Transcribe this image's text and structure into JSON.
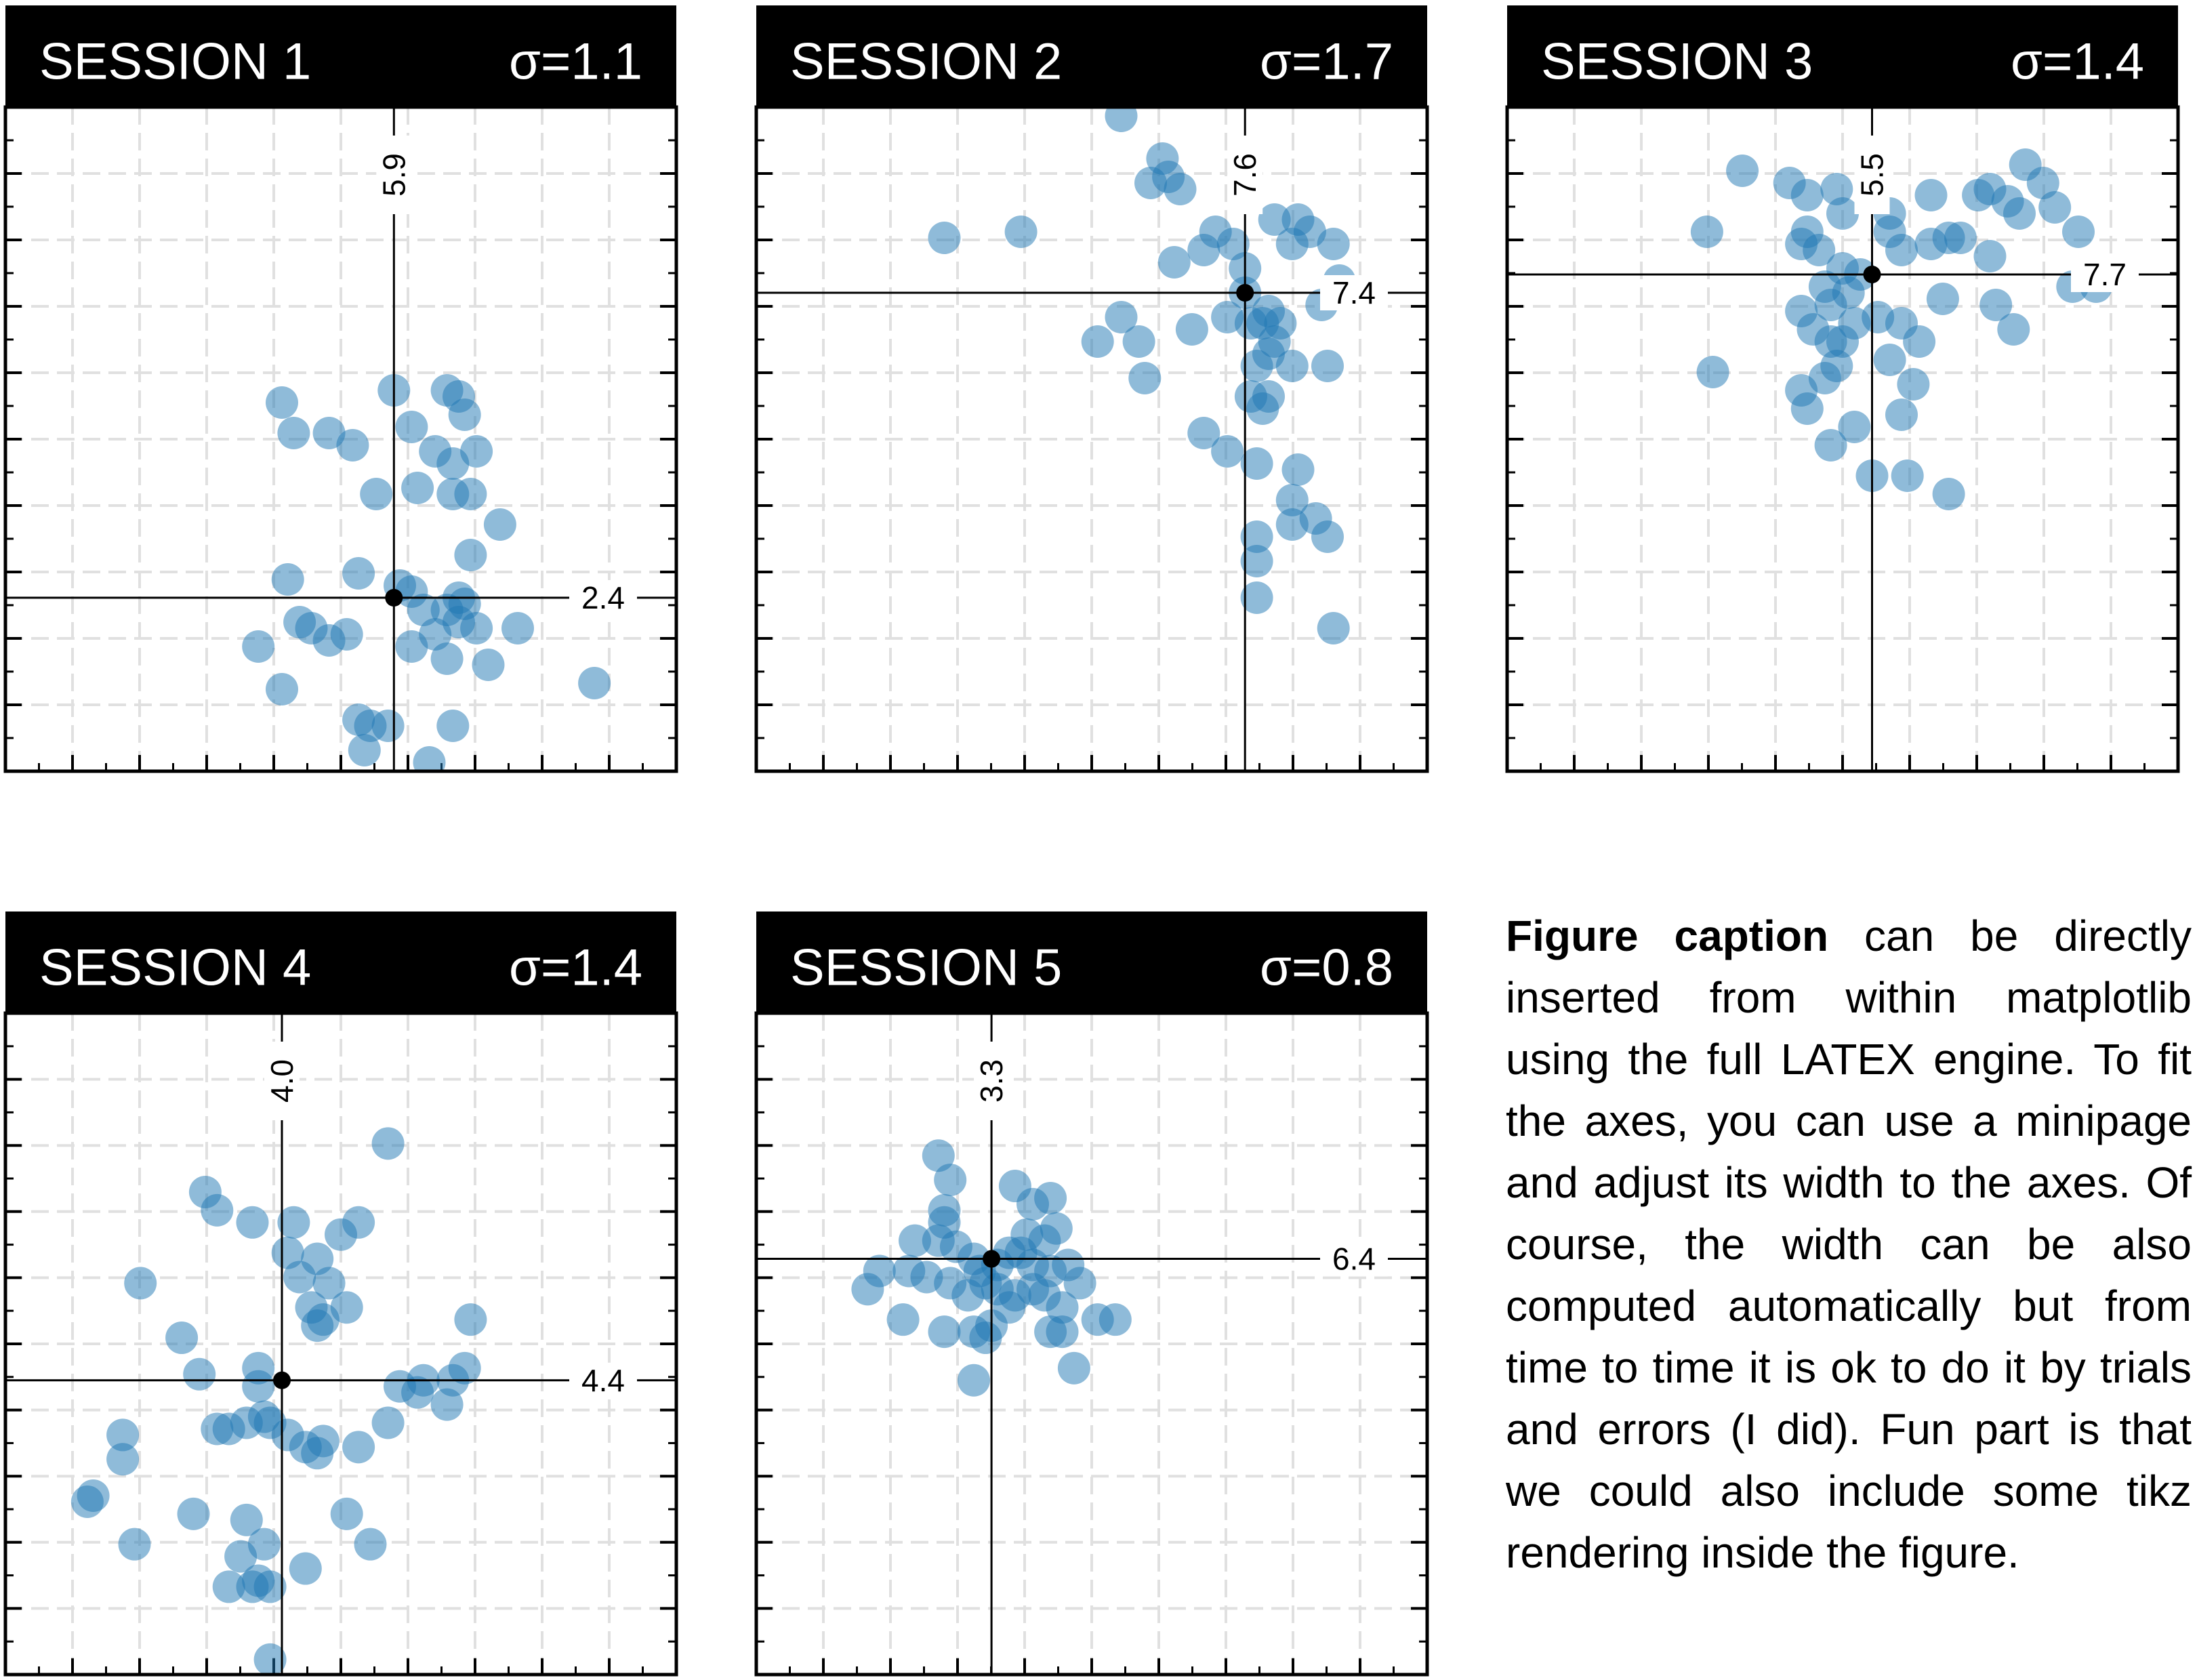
{
  "chart_data": [
    {
      "type": "scatter",
      "title": "SESSION 1",
      "sigma_label": "σ=1.1",
      "mean": {
        "x": 5.9,
        "y": 2.4
      },
      "mean_x_label": "5.9",
      "mean_y_label": "2.4",
      "xlim": [
        0,
        10
      ],
      "ylim": [
        0,
        10
      ],
      "grid": true,
      "points": [
        [
          4.2,
          5.1
        ],
        [
          4.8,
          5.1
        ],
        [
          4.0,
          5.6
        ],
        [
          5.6,
          4.1
        ],
        [
          5.9,
          5.8
        ],
        [
          5.2,
          4.9
        ],
        [
          6.2,
          5.2
        ],
        [
          6.8,
          5.8
        ],
        [
          7.0,
          5.7
        ],
        [
          7.1,
          5.4
        ],
        [
          6.6,
          4.8
        ],
        [
          6.9,
          4.6
        ],
        [
          7.3,
          4.8
        ],
        [
          6.3,
          4.2
        ],
        [
          6.9,
          4.1
        ],
        [
          7.2,
          4.1
        ],
        [
          7.2,
          3.1
        ],
        [
          7.7,
          3.6
        ],
        [
          7.1,
          2.3
        ],
        [
          7.0,
          2.4
        ],
        [
          6.0,
          2.6
        ],
        [
          5.3,
          2.8
        ],
        [
          6.2,
          2.5
        ],
        [
          6.4,
          2.2
        ],
        [
          6.8,
          2.2
        ],
        [
          7.0,
          2.0
        ],
        [
          6.6,
          1.8
        ],
        [
          7.3,
          1.9
        ],
        [
          7.5,
          1.3
        ],
        [
          6.8,
          1.4
        ],
        [
          6.2,
          1.6
        ],
        [
          8.0,
          1.9
        ],
        [
          9.3,
          1.0
        ],
        [
          3.6,
          1.6
        ],
        [
          4.1,
          2.7
        ],
        [
          4.5,
          1.9
        ],
        [
          4.3,
          2.0
        ],
        [
          4.8,
          1.7
        ],
        [
          5.1,
          1.8
        ],
        [
          4.0,
          0.9
        ],
        [
          5.3,
          0.4
        ],
        [
          5.5,
          0.3
        ],
        [
          5.8,
          0.3
        ],
        [
          6.9,
          0.3
        ],
        [
          5.4,
          -0.1
        ],
        [
          6.5,
          -0.3
        ]
      ]
    },
    {
      "type": "scatter",
      "title": "SESSION 2",
      "sigma_label": "σ=1.7",
      "mean": {
        "x": 7.6,
        "y": 7.4
      },
      "mean_x_label": "7.6",
      "mean_y_label": "7.4",
      "xlim": [
        0,
        10
      ],
      "ylim": [
        0,
        10
      ],
      "grid": true,
      "points": [
        [
          2.5,
          8.3
        ],
        [
          3.8,
          8.4
        ],
        [
          5.5,
          10.3
        ],
        [
          6.0,
          9.2
        ],
        [
          6.2,
          9.6
        ],
        [
          6.3,
          9.3
        ],
        [
          6.5,
          9.1
        ],
        [
          6.9,
          8.1
        ],
        [
          6.4,
          7.9
        ],
        [
          7.1,
          8.4
        ],
        [
          7.4,
          8.2
        ],
        [
          8.1,
          8.6
        ],
        [
          8.5,
          8.6
        ],
        [
          8.7,
          8.4
        ],
        [
          8.4,
          8.2
        ],
        [
          9.1,
          8.2
        ],
        [
          9.2,
          7.6
        ],
        [
          8.9,
          7.2
        ],
        [
          8.2,
          6.9
        ],
        [
          8.0,
          7.1
        ],
        [
          7.3,
          7.0
        ],
        [
          7.7,
          6.9
        ],
        [
          7.9,
          6.9
        ],
        [
          7.6,
          7.4
        ],
        [
          7.6,
          7.8
        ],
        [
          5.5,
          7.0
        ],
        [
          5.1,
          6.6
        ],
        [
          5.8,
          6.6
        ],
        [
          5.9,
          6.0
        ],
        [
          6.7,
          6.8
        ],
        [
          8.1,
          6.6
        ],
        [
          8.0,
          6.4
        ],
        [
          7.8,
          6.2
        ],
        [
          8.4,
          6.2
        ],
        [
          9.0,
          6.2
        ],
        [
          8.0,
          5.7
        ],
        [
          7.7,
          5.7
        ],
        [
          7.9,
          5.5
        ],
        [
          6.9,
          5.1
        ],
        [
          7.3,
          4.8
        ],
        [
          7.8,
          4.6
        ],
        [
          8.4,
          4.0
        ],
        [
          8.5,
          4.5
        ],
        [
          8.8,
          3.7
        ],
        [
          9.0,
          3.4
        ],
        [
          8.4,
          3.6
        ],
        [
          7.8,
          3.4
        ],
        [
          7.8,
          3.0
        ],
        [
          7.8,
          2.4
        ],
        [
          9.1,
          1.9
        ]
      ]
    },
    {
      "type": "scatter",
      "title": "SESSION 3",
      "sigma_label": "σ=1.4",
      "mean": {
        "x": 5.5,
        "y": 7.7
      },
      "mean_x_label": "5.5",
      "mean_y_label": "7.7",
      "xlim": [
        0,
        10
      ],
      "ylim": [
        0,
        10
      ],
      "grid": true,
      "points": [
        [
          3.3,
          9.4
        ],
        [
          4.1,
          9.2
        ],
        [
          4.3,
          8.2
        ],
        [
          4.4,
          9.0
        ],
        [
          4.6,
          8.1
        ],
        [
          4.9,
          9.1
        ],
        [
          5.0,
          8.7
        ],
        [
          5.5,
          9.0
        ],
        [
          5.8,
          8.7
        ],
        [
          6.5,
          9.0
        ],
        [
          6.8,
          8.3
        ],
        [
          7.3,
          9.0
        ],
        [
          7.5,
          9.1
        ],
        [
          7.8,
          8.9
        ],
        [
          8.0,
          8.7
        ],
        [
          8.4,
          9.2
        ],
        [
          8.6,
          8.8
        ],
        [
          8.1,
          9.5
        ],
        [
          9.0,
          8.4
        ],
        [
          7.5,
          8.0
        ],
        [
          7.0,
          8.3
        ],
        [
          6.5,
          8.2
        ],
        [
          6.0,
          8.1
        ],
        [
          5.8,
          8.4
        ],
        [
          4.4,
          8.4
        ],
        [
          2.7,
          8.4
        ],
        [
          4.7,
          7.5
        ],
        [
          5.0,
          7.8
        ],
        [
          5.3,
          7.7
        ],
        [
          5.1,
          7.4
        ],
        [
          4.8,
          7.2
        ],
        [
          4.3,
          7.1
        ],
        [
          4.5,
          6.8
        ],
        [
          4.8,
          6.6
        ],
        [
          5.0,
          6.6
        ],
        [
          5.2,
          6.9
        ],
        [
          5.6,
          7.0
        ],
        [
          6.0,
          6.9
        ],
        [
          6.3,
          6.6
        ],
        [
          5.8,
          6.3
        ],
        [
          4.9,
          6.2
        ],
        [
          4.7,
          6.0
        ],
        [
          4.3,
          5.8
        ],
        [
          5.2,
          5.2
        ],
        [
          6.2,
          5.9
        ],
        [
          6.0,
          5.4
        ],
        [
          6.7,
          7.3
        ],
        [
          7.6,
          7.2
        ],
        [
          7.9,
          6.8
        ],
        [
          8.9,
          7.5
        ],
        [
          9.3,
          7.5
        ],
        [
          2.8,
          6.1
        ],
        [
          4.4,
          5.5
        ],
        [
          4.8,
          4.9
        ],
        [
          5.5,
          4.4
        ],
        [
          6.1,
          4.4
        ],
        [
          6.8,
          4.1
        ]
      ]
    },
    {
      "type": "scatter",
      "title": "SESSION 4",
      "sigma_label": "σ=1.4",
      "mean": {
        "x": 4.0,
        "y": 4.4
      },
      "mean_x_label": "4.0",
      "mean_y_label": "4.4",
      "xlim": [
        0,
        10
      ],
      "ylim": [
        0,
        10
      ],
      "grid": true,
      "points": [
        [
          5.8,
          8.3
        ],
        [
          2.7,
          7.5
        ],
        [
          2.9,
          7.2
        ],
        [
          1.6,
          6.0
        ],
        [
          3.5,
          7.0
        ],
        [
          4.2,
          7.0
        ],
        [
          4.1,
          6.5
        ],
        [
          4.3,
          6.1
        ],
        [
          4.6,
          6.4
        ],
        [
          4.8,
          6.0
        ],
        [
          4.5,
          5.6
        ],
        [
          4.6,
          5.3
        ],
        [
          4.7,
          5.4
        ],
        [
          5.1,
          5.6
        ],
        [
          5.0,
          6.8
        ],
        [
          5.3,
          7.0
        ],
        [
          2.3,
          5.1
        ],
        [
          2.6,
          4.5
        ],
        [
          3.6,
          4.6
        ],
        [
          3.6,
          4.3
        ],
        [
          3.7,
          3.8
        ],
        [
          3.4,
          3.7
        ],
        [
          3.1,
          3.6
        ],
        [
          2.9,
          3.6
        ],
        [
          3.8,
          3.7
        ],
        [
          4.1,
          3.5
        ],
        [
          4.4,
          3.3
        ],
        [
          4.6,
          3.2
        ],
        [
          4.7,
          3.4
        ],
        [
          5.3,
          3.3
        ],
        [
          5.8,
          3.7
        ],
        [
          6.0,
          4.3
        ],
        [
          6.3,
          4.2
        ],
        [
          6.4,
          4.4
        ],
        [
          6.9,
          4.4
        ],
        [
          6.8,
          4.0
        ],
        [
          7.1,
          4.6
        ],
        [
          7.2,
          5.4
        ],
        [
          1.3,
          3.5
        ],
        [
          1.3,
          3.1
        ],
        [
          0.8,
          2.5
        ],
        [
          0.7,
          2.4
        ],
        [
          1.5,
          1.7
        ],
        [
          2.5,
          2.2
        ],
        [
          3.4,
          2.1
        ],
        [
          3.3,
          1.5
        ],
        [
          3.7,
          1.7
        ],
        [
          3.6,
          1.1
        ],
        [
          3.5,
          1.0
        ],
        [
          3.1,
          1.0
        ],
        [
          3.8,
          1.0
        ],
        [
          4.4,
          1.3
        ],
        [
          5.1,
          2.2
        ],
        [
          5.5,
          1.7
        ],
        [
          3.8,
          -0.2
        ]
      ]
    },
    {
      "type": "scatter",
      "title": "SESSION 5",
      "sigma_label": "σ=0.8",
      "mean": {
        "x": 3.3,
        "y": 6.4
      },
      "mean_x_label": "3.3",
      "mean_y_label": "6.4",
      "xlim": [
        0,
        10
      ],
      "ylim": [
        0,
        10
      ],
      "grid": true,
      "points": [
        [
          2.4,
          8.1
        ],
        [
          2.6,
          7.7
        ],
        [
          2.5,
          7.2
        ],
        [
          3.7,
          7.6
        ],
        [
          4.0,
          7.3
        ],
        [
          4.3,
          7.4
        ],
        [
          3.9,
          6.8
        ],
        [
          4.2,
          6.7
        ],
        [
          4.4,
          6.9
        ],
        [
          2.5,
          7.0
        ],
        [
          2.0,
          6.7
        ],
        [
          2.4,
          6.7
        ],
        [
          2.7,
          6.6
        ],
        [
          3.0,
          6.4
        ],
        [
          3.1,
          6.2
        ],
        [
          3.4,
          6.3
        ],
        [
          3.6,
          6.5
        ],
        [
          3.8,
          6.5
        ],
        [
          4.0,
          6.3
        ],
        [
          4.3,
          6.2
        ],
        [
          4.6,
          6.3
        ],
        [
          4.8,
          6.0
        ],
        [
          1.4,
          6.2
        ],
        [
          1.9,
          6.2
        ],
        [
          2.2,
          6.1
        ],
        [
          2.6,
          6.0
        ],
        [
          2.9,
          5.8
        ],
        [
          3.2,
          6.0
        ],
        [
          3.4,
          5.9
        ],
        [
          3.7,
          5.8
        ],
        [
          4.0,
          5.9
        ],
        [
          4.2,
          5.8
        ],
        [
          4.5,
          5.6
        ],
        [
          1.2,
          5.9
        ],
        [
          1.8,
          5.4
        ],
        [
          2.5,
          5.2
        ],
        [
          3.0,
          5.2
        ],
        [
          3.2,
          5.1
        ],
        [
          3.3,
          5.3
        ],
        [
          3.6,
          5.6
        ],
        [
          4.3,
          5.2
        ],
        [
          4.5,
          5.2
        ],
        [
          5.1,
          5.4
        ],
        [
          5.4,
          5.4
        ],
        [
          4.7,
          4.6
        ],
        [
          3.0,
          4.4
        ]
      ]
    }
  ],
  "caption": {
    "lead": "Figure caption",
    "text": " can be directly inserted from within matplotlib using the full LATEX engine. To fit the axes, you can use a mini­page and adjust its width to the axes. Of course, the width can be also computed auto­matically but from time to time it is ok to do it by trials and er­rors (I did). Fun part is that we could also include some tikz rendering inside the figure."
  },
  "colors": {
    "marker": "#1f77b4",
    "marker_opacity": 0.5,
    "title_bar": "#000000",
    "grid": "#e0e0e0",
    "mean_dot": "#000000"
  }
}
